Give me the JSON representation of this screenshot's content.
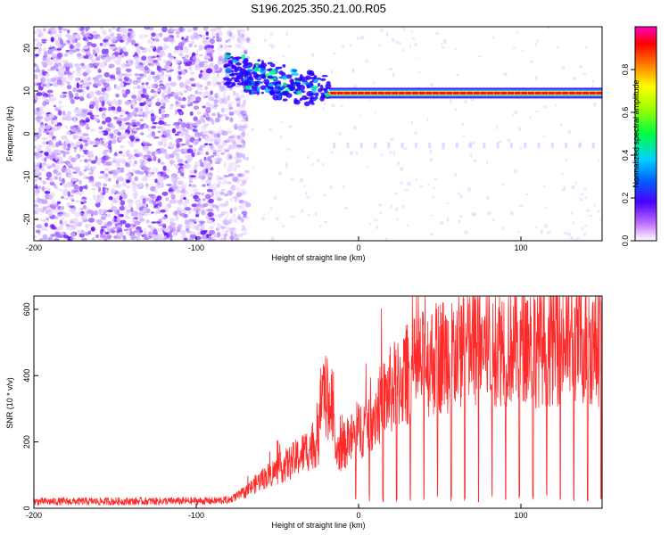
{
  "figure_title": "S196.2025.350.21.00.R05",
  "chart_data": [
    {
      "type": "heatmap",
      "xlabel": "Height of straight line (km)",
      "ylabel": "Frequency (Hz)",
      "xlim": [
        -200,
        150
      ],
      "ylim": [
        -25,
        25
      ],
      "xticks": [
        "-200",
        "-100",
        "0",
        "100"
      ],
      "xtick_values": [
        -200,
        -100,
        0,
        100
      ],
      "yticks": [
        "20",
        "10",
        "0",
        "-10",
        "-20"
      ],
      "ytick_values": [
        20,
        10,
        0,
        -10,
        -20
      ],
      "colorbar": {
        "label": "Normalized spectral amplitude",
        "range": [
          0,
          1
        ],
        "ticks": [
          "0.0",
          "0.2",
          "0.4",
          "0.6",
          "0.8"
        ],
        "tick_values": [
          0.0,
          0.2,
          0.4,
          0.6,
          0.8
        ]
      },
      "features": {
        "noise_region_km": [
          -200,
          -80
        ],
        "main_tone_start_km": -18,
        "main_tone_frequency_hz": 9.5,
        "onset_frequency_hz": 15
      }
    },
    {
      "type": "line",
      "xlabel": "Height of straight line (km)",
      "ylabel": "SNR (10 * v/v)",
      "xlim": [
        -200,
        150
      ],
      "ylim": [
        0,
        640
      ],
      "xticks": [
        "-200",
        "-100",
        "0",
        "100"
      ],
      "xtick_values": [
        -200,
        -100,
        0,
        100
      ],
      "yticks": [
        "600",
        "400",
        "200",
        "0"
      ],
      "ytick_values": [
        600,
        400,
        200,
        0
      ],
      "series": [
        {
          "name": "SNR",
          "color": "#ff2a2a",
          "profile_x": [
            -200,
            -90,
            -80,
            -70,
            -60,
            -50,
            -40,
            -30,
            -20,
            -18,
            -10,
            0,
            10,
            20,
            30,
            40,
            50,
            60,
            70,
            80,
            90,
            100,
            110,
            120,
            130,
            140,
            150
          ],
          "profile_y": [
            20,
            22,
            25,
            50,
            90,
            120,
            150,
            190,
            230,
            160,
            190,
            240,
            300,
            370,
            420,
            450,
            480,
            490,
            500,
            510,
            520,
            520,
            515,
            520,
            525,
            520,
            515
          ],
          "dropout_interval_km": 8.4,
          "dropout_start_km": -2
        }
      ]
    }
  ],
  "colors": {
    "line": "#ff2a2a",
    "axis": "#000000"
  }
}
